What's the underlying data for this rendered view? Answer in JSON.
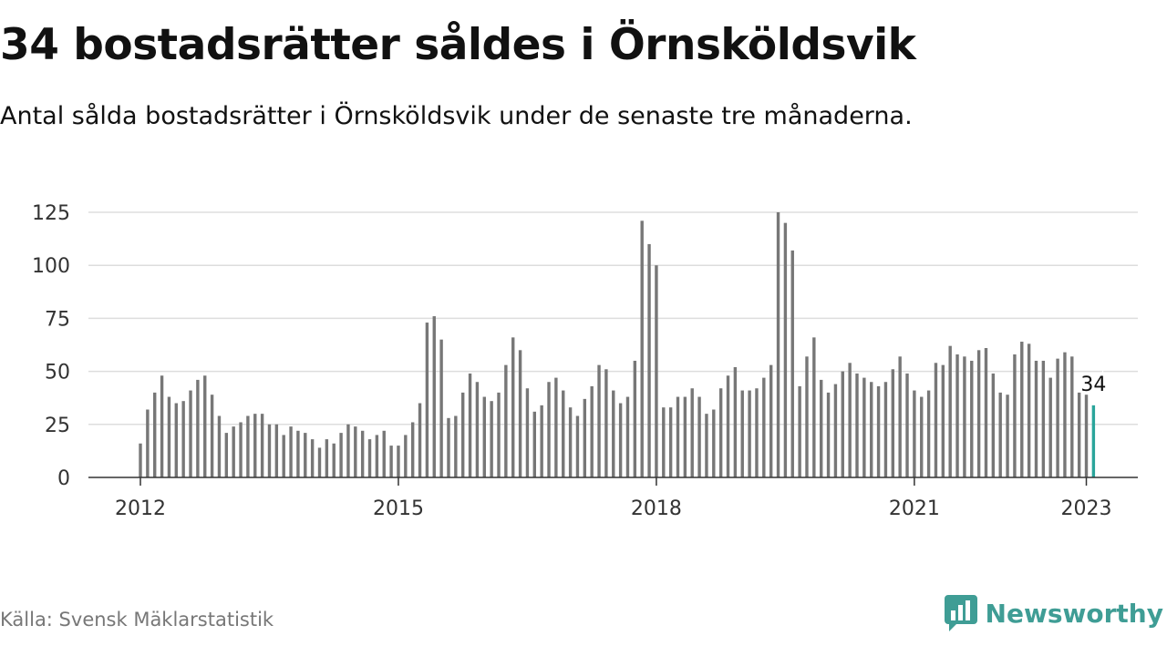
{
  "header": {
    "title": "34 bostadsrätter såldes i Örnsköldsvik",
    "subtitle": "Antal sålda bostadsrätter i Örnsköldsvik under de senaste tre månaderna."
  },
  "footer": {
    "source": "Källa: Svensk Mäklarstatistik",
    "brand": "Newsworthy"
  },
  "colors": {
    "bar": "#777777",
    "highlight": "#2aa59b",
    "brand": "#3f9d95",
    "grid": "#dddddd"
  },
  "chart_data": {
    "type": "bar",
    "title": "",
    "xlabel": "",
    "ylabel": "",
    "ylim": [
      0,
      125
    ],
    "y_ticks": [
      0,
      25,
      50,
      75,
      100,
      125
    ],
    "x_ticks": [
      "2012",
      "2015",
      "2018",
      "2021",
      "2023"
    ],
    "grid": true,
    "start": "2012-01",
    "end": "2023-01",
    "values": [
      16,
      32,
      40,
      48,
      38,
      35,
      36,
      41,
      46,
      48,
      39,
      29,
      21,
      24,
      26,
      29,
      30,
      30,
      25,
      25,
      20,
      24,
      22,
      21,
      18,
      14,
      18,
      16,
      21,
      25,
      24,
      22,
      18,
      20,
      22,
      15,
      15,
      20,
      26,
      35,
      73,
      76,
      65,
      28,
      29,
      40,
      49,
      45,
      38,
      36,
      40,
      53,
      66,
      60,
      42,
      31,
      34,
      45,
      47,
      41,
      33,
      29,
      37,
      43,
      53,
      51,
      41,
      35,
      38,
      55,
      121,
      110,
      100,
      33,
      33,
      38,
      38,
      42,
      38,
      30,
      32,
      42,
      48,
      52,
      41,
      41,
      42,
      47,
      53,
      125,
      120,
      107,
      43,
      57,
      66,
      46,
      40,
      44,
      50,
      54,
      49,
      47,
      45,
      43,
      45,
      51,
      57,
      49,
      41,
      38,
      41,
      54,
      53,
      62,
      58,
      57,
      55,
      60,
      61,
      49,
      40,
      39,
      58,
      64,
      63,
      55,
      55,
      47,
      56,
      59,
      57,
      40,
      39,
      34
    ],
    "highlight_label": "34"
  }
}
